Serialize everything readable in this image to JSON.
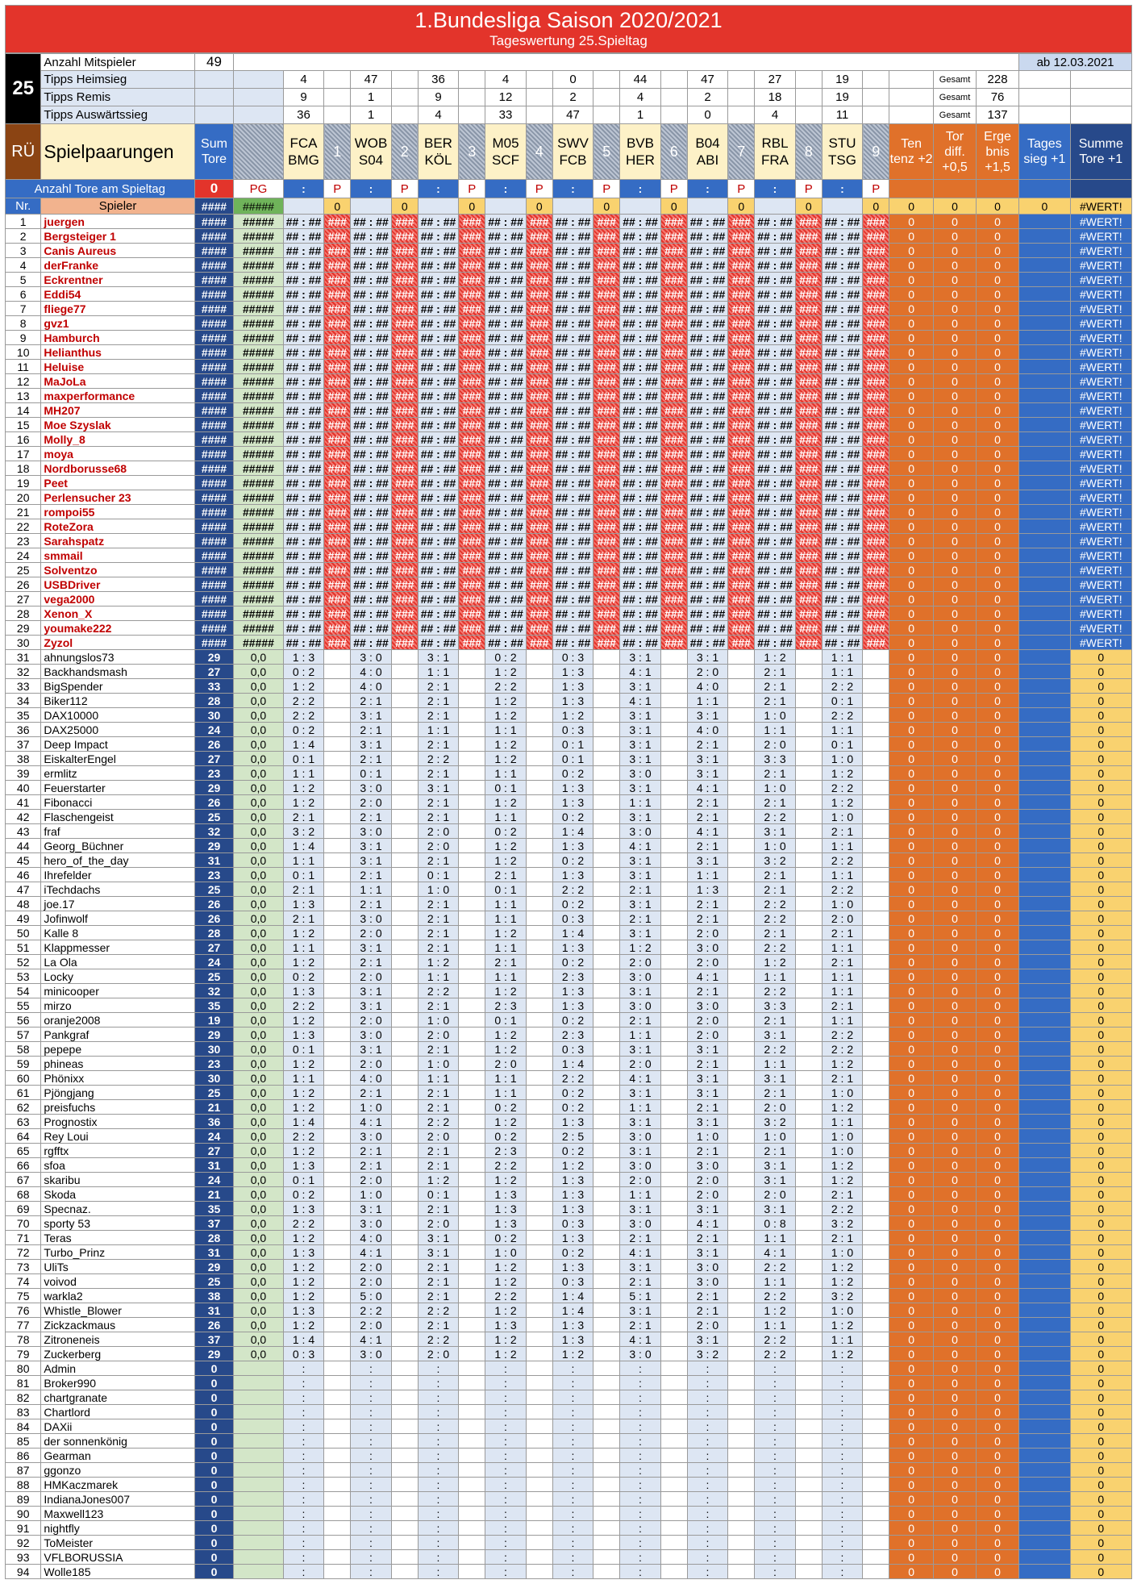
{
  "title": "1.Bundesliga Saison 2020/2021",
  "subtitle": "Tageswertung 25.Spieltag",
  "matchday": "25",
  "players_label": "Anzahl Mitspieler",
  "players_count": "49",
  "date": "ab 12.03.2021",
  "gesamt_label": "Gesamt",
  "tips": [
    {
      "label": "Tipps Heimsieg",
      "values": [
        "4",
        "47",
        "36",
        "4",
        "0",
        "44",
        "47",
        "27",
        "19"
      ],
      "total": "228"
    },
    {
      "label": "Tipps Remis",
      "values": [
        "9",
        "1",
        "9",
        "12",
        "2",
        "4",
        "2",
        "18",
        "19"
      ],
      "total": "76"
    },
    {
      "label": "Tipps Auswärtssieg",
      "values": [
        "36",
        "1",
        "4",
        "33",
        "47",
        "1",
        "0",
        "4",
        "11"
      ],
      "total": "137"
    }
  ],
  "header": {
    "ru": "RÜ",
    "pairings": "Spielpaarungen",
    "sum_tore": "Sum Tore",
    "matches": [
      {
        "home": "FCA",
        "away": "BMG",
        "n": "1"
      },
      {
        "home": "WOB",
        "away": "S04",
        "n": "2"
      },
      {
        "home": "BER",
        "away": "KÖL",
        "n": "3"
      },
      {
        "home": "M05",
        "away": "SCF",
        "n": "4"
      },
      {
        "home": "SWV",
        "away": "FCB",
        "n": "5"
      },
      {
        "home": "BVB",
        "away": "HER",
        "n": "6"
      },
      {
        "home": "B04",
        "away": "ABI",
        "n": "7"
      },
      {
        "home": "RBL",
        "away": "FRA",
        "n": "8"
      },
      {
        "home": "STU",
        "away": "TSG",
        "n": "9"
      }
    ],
    "tendenz": "Ten tenz +2",
    "tordiff": "Tor diff. +0,5",
    "ergebnis": "Erge bnis +1,5",
    "tagessieg": "Tages sieg +1",
    "summe": "Summe Tore +1"
  },
  "goals_row": {
    "label": "Anzahl Tore am Spieltag",
    "value": "0",
    "pg": "PG",
    "colon": ":",
    "p": "P"
  },
  "sub_header": {
    "nr": "Nr.",
    "spieler": "Spieler",
    "sum": "####",
    "pg": "#####",
    "zero": "0",
    "wert": "#WERT!"
  },
  "err": {
    "sum": "####",
    "pg": "#####",
    "tip": "## : ##",
    "pts": "###",
    "zero": "0",
    "wert": "#WERT!"
  },
  "blank_tip": ":",
  "group_a": [
    "juergen",
    "Bergsteiger 1",
    "Canis Aureus",
    "derFranke",
    "Eckrentner",
    "Eddi54",
    "fliege77",
    "gvz1",
    "Hamburch",
    "Helianthus",
    "Heluise",
    "MaJoLa",
    "maxperformance",
    "MH207",
    "Moe Szyslak",
    "Molly_8",
    "moya",
    "Nordborusse68",
    "Peet",
    "Perlensucher 23",
    "rompoi55",
    "RoteZora",
    "Sarahspatz",
    "smmail",
    "Solventzo",
    "USBDriver",
    "vega2000",
    "Xenon_X",
    "youmake222",
    "Zyzol"
  ],
  "group_b": [
    {
      "n": "ahnungslos73",
      "s": "29",
      "t": [
        "1 : 3",
        "3 : 0",
        "3 : 1",
        "0 : 2",
        "0 : 3",
        "3 : 1",
        "3 : 1",
        "1 : 2",
        "1 : 1"
      ]
    },
    {
      "n": "Backhandsmash",
      "s": "27",
      "t": [
        "0 : 2",
        "4 : 0",
        "1 : 1",
        "1 : 2",
        "1 : 3",
        "4 : 1",
        "2 : 0",
        "2 : 1",
        "1 : 1"
      ]
    },
    {
      "n": "BigSpender",
      "s": "33",
      "t": [
        "1 : 2",
        "4 : 0",
        "2 : 1",
        "2 : 2",
        "1 : 3",
        "3 : 1",
        "4 : 0",
        "2 : 1",
        "2 : 2"
      ]
    },
    {
      "n": "Biker112",
      "s": "28",
      "t": [
        "2 : 2",
        "2 : 1",
        "2 : 1",
        "1 : 2",
        "1 : 3",
        "4 : 1",
        "1 : 1",
        "2 : 1",
        "0 : 1"
      ]
    },
    {
      "n": "DAX10000",
      "s": "30",
      "t": [
        "2 : 2",
        "3 : 1",
        "2 : 1",
        "1 : 2",
        "1 : 2",
        "3 : 1",
        "3 : 1",
        "1 : 0",
        "2 : 2"
      ]
    },
    {
      "n": "DAX25000",
      "s": "24",
      "t": [
        "0 : 2",
        "2 : 1",
        "1 : 1",
        "1 : 1",
        "0 : 3",
        "3 : 1",
        "4 : 0",
        "1 : 1",
        "1 : 1"
      ]
    },
    {
      "n": "Deep Impact",
      "s": "26",
      "t": [
        "1 : 4",
        "3 : 1",
        "2 : 1",
        "1 : 2",
        "0 : 1",
        "3 : 1",
        "2 : 1",
        "2 : 0",
        "0 : 1"
      ]
    },
    {
      "n": "EiskalterEngel",
      "s": "27",
      "t": [
        "0 : 1",
        "2 : 1",
        "2 : 2",
        "1 : 2",
        "0 : 1",
        "3 : 1",
        "3 : 1",
        "3 : 3",
        "1 : 0"
      ]
    },
    {
      "n": "ermlitz",
      "s": "23",
      "t": [
        "1 : 1",
        "0 : 1",
        "2 : 1",
        "1 : 1",
        "0 : 2",
        "3 : 0",
        "3 : 1",
        "2 : 1",
        "1 : 2"
      ]
    },
    {
      "n": "Feuerstarter",
      "s": "29",
      "t": [
        "1 : 2",
        "3 : 0",
        "3 : 1",
        "0 : 1",
        "1 : 3",
        "3 : 1",
        "4 : 1",
        "1 : 0",
        "2 : 2"
      ]
    },
    {
      "n": "Fibonacci",
      "s": "26",
      "t": [
        "1 : 2",
        "2 : 0",
        "2 : 1",
        "1 : 2",
        "1 : 3",
        "1 : 1",
        "2 : 1",
        "2 : 1",
        "1 : 2"
      ]
    },
    {
      "n": "Flaschengeist",
      "s": "25",
      "t": [
        "2 : 1",
        "2 : 1",
        "2 : 1",
        "1 : 1",
        "0 : 2",
        "3 : 1",
        "2 : 1",
        "2 : 2",
        "1 : 0"
      ]
    },
    {
      "n": "fraf",
      "s": "32",
      "t": [
        "3 : 2",
        "3 : 0",
        "2 : 0",
        "0 : 2",
        "1 : 4",
        "3 : 0",
        "4 : 1",
        "3 : 1",
        "2 : 1"
      ]
    },
    {
      "n": "Georg_Büchner",
      "s": "29",
      "t": [
        "1 : 4",
        "3 : 1",
        "2 : 0",
        "1 : 2",
        "1 : 3",
        "4 : 1",
        "2 : 1",
        "1 : 0",
        "1 : 1"
      ]
    },
    {
      "n": "hero_of_the_day",
      "s": "31",
      "t": [
        "1 : 1",
        "3 : 1",
        "2 : 1",
        "1 : 2",
        "0 : 2",
        "3 : 1",
        "3 : 1",
        "3 : 2",
        "2 : 2"
      ]
    },
    {
      "n": "Ihrefelder",
      "s": "23",
      "t": [
        "0 : 1",
        "2 : 1",
        "0 : 1",
        "2 : 1",
        "1 : 3",
        "3 : 1",
        "1 : 1",
        "2 : 1",
        "1 : 1"
      ]
    },
    {
      "n": "iTechdachs",
      "s": "25",
      "t": [
        "2 : 1",
        "1 : 1",
        "1 : 0",
        "0 : 1",
        "2 : 2",
        "2 : 1",
        "1 : 3",
        "2 : 1",
        "2 : 2"
      ]
    },
    {
      "n": "joe.17",
      "s": "26",
      "t": [
        "1 : 3",
        "2 : 1",
        "2 : 1",
        "1 : 1",
        "0 : 2",
        "3 : 1",
        "2 : 1",
        "2 : 2",
        "1 : 0"
      ]
    },
    {
      "n": "Jofinwolf",
      "s": "26",
      "t": [
        "2 : 1",
        "3 : 0",
        "2 : 1",
        "1 : 1",
        "0 : 3",
        "2 : 1",
        "2 : 1",
        "2 : 2",
        "2 : 0"
      ]
    },
    {
      "n": "Kalle 8",
      "s": "28",
      "t": [
        "1 : 2",
        "2 : 0",
        "2 : 1",
        "1 : 2",
        "1 : 4",
        "3 : 1",
        "2 : 0",
        "2 : 1",
        "2 : 1"
      ]
    },
    {
      "n": "Klappmesser",
      "s": "27",
      "t": [
        "1 : 1",
        "3 : 1",
        "2 : 1",
        "1 : 1",
        "1 : 3",
        "1 : 2",
        "3 : 0",
        "2 : 2",
        "1 : 1"
      ]
    },
    {
      "n": "La Ola",
      "s": "24",
      "t": [
        "1 : 2",
        "2 : 1",
        "1 : 2",
        "2 : 1",
        "0 : 2",
        "2 : 0",
        "2 : 0",
        "1 : 2",
        "2 : 1"
      ]
    },
    {
      "n": "Locky",
      "s": "25",
      "t": [
        "0 : 2",
        "2 : 0",
        "1 : 1",
        "1 : 1",
        "2 : 3",
        "3 : 0",
        "4 : 1",
        "1 : 1",
        "1 : 1"
      ]
    },
    {
      "n": "minicooper",
      "s": "32",
      "t": [
        "1 : 3",
        "3 : 1",
        "2 : 2",
        "1 : 2",
        "1 : 3",
        "3 : 1",
        "2 : 1",
        "2 : 2",
        "1 : 1"
      ]
    },
    {
      "n": "mirzo",
      "s": "35",
      "t": [
        "2 : 2",
        "3 : 1",
        "2 : 1",
        "2 : 3",
        "1 : 3",
        "3 : 0",
        "3 : 0",
        "3 : 3",
        "2 : 1"
      ]
    },
    {
      "n": "oranje2008",
      "s": "19",
      "t": [
        "1 : 2",
        "2 : 0",
        "1 : 0",
        "0 : 1",
        "0 : 2",
        "2 : 1",
        "2 : 0",
        "2 : 1",
        "1 : 1"
      ]
    },
    {
      "n": "Pankgraf",
      "s": "29",
      "t": [
        "1 : 3",
        "3 : 0",
        "2 : 0",
        "1 : 2",
        "2 : 3",
        "1 : 1",
        "2 : 0",
        "3 : 1",
        "2 : 2"
      ]
    },
    {
      "n": "pepepe",
      "s": "30",
      "t": [
        "0 : 1",
        "3 : 1",
        "2 : 1",
        "1 : 2",
        "0 : 3",
        "3 : 1",
        "3 : 1",
        "2 : 2",
        "2 : 2"
      ]
    },
    {
      "n": "phineas",
      "s": "23",
      "t": [
        "1 : 2",
        "2 : 0",
        "1 : 0",
        "2 : 0",
        "1 : 4",
        "2 : 0",
        "2 : 1",
        "1 : 1",
        "1 : 2"
      ]
    },
    {
      "n": "Phönixx",
      "s": "30",
      "t": [
        "1 : 1",
        "4 : 0",
        "1 : 1",
        "1 : 1",
        "2 : 2",
        "4 : 1",
        "3 : 1",
        "3 : 1",
        "2 : 1"
      ]
    },
    {
      "n": "Pjöngjang",
      "s": "25",
      "t": [
        "1 : 2",
        "2 : 1",
        "2 : 1",
        "1 : 1",
        "0 : 2",
        "3 : 1",
        "3 : 1",
        "2 : 1",
        "1 : 0"
      ]
    },
    {
      "n": "preisfuchs",
      "s": "21",
      "t": [
        "1 : 2",
        "1 : 0",
        "2 : 1",
        "0 : 2",
        "0 : 2",
        "1 : 1",
        "2 : 1",
        "2 : 0",
        "1 : 2"
      ]
    },
    {
      "n": "Prognostix",
      "s": "36",
      "t": [
        "1 : 4",
        "4 : 1",
        "2 : 2",
        "1 : 2",
        "1 : 3",
        "3 : 1",
        "3 : 1",
        "3 : 2",
        "1 : 1"
      ]
    },
    {
      "n": "Rey Loui",
      "s": "24",
      "t": [
        "2 : 2",
        "3 : 0",
        "2 : 0",
        "0 : 2",
        "2 : 5",
        "3 : 0",
        "1 : 0",
        "1 : 0",
        "1 : 0"
      ]
    },
    {
      "n": "rgfftx",
      "s": "27",
      "t": [
        "1 : 2",
        "2 : 1",
        "2 : 1",
        "2 : 3",
        "0 : 2",
        "3 : 1",
        "2 : 1",
        "2 : 1",
        "1 : 0"
      ]
    },
    {
      "n": "sfoa",
      "s": "31",
      "t": [
        "1 : 3",
        "2 : 1",
        "2 : 1",
        "2 : 2",
        "1 : 2",
        "3 : 0",
        "3 : 0",
        "3 : 1",
        "1 : 2"
      ]
    },
    {
      "n": "skaribu",
      "s": "24",
      "t": [
        "0 : 1",
        "2 : 0",
        "1 : 2",
        "1 : 2",
        "1 : 3",
        "2 : 0",
        "2 : 0",
        "3 : 1",
        "1 : 2"
      ]
    },
    {
      "n": "Skoda",
      "s": "21",
      "t": [
        "0 : 2",
        "1 : 0",
        "0 : 1",
        "1 : 3",
        "1 : 3",
        "1 : 1",
        "2 : 0",
        "2 : 0",
        "2 : 1"
      ]
    },
    {
      "n": "Specnaz.",
      "s": "35",
      "t": [
        "1 : 3",
        "3 : 1",
        "2 : 1",
        "1 : 3",
        "1 : 3",
        "3 : 1",
        "3 : 1",
        "3 : 1",
        "2 : 2"
      ]
    },
    {
      "n": "sporty 53",
      "s": "37",
      "t": [
        "2 : 2",
        "3 : 0",
        "2 : 0",
        "1 : 3",
        "0 : 3",
        "3 : 0",
        "4 : 1",
        "0 : 8",
        "3 : 2"
      ]
    },
    {
      "n": "Teras",
      "s": "28",
      "t": [
        "1 : 2",
        "4 : 0",
        "3 : 1",
        "0 : 2",
        "1 : 3",
        "2 : 1",
        "2 : 1",
        "1 : 1",
        "2 : 1"
      ]
    },
    {
      "n": "Turbo_Prinz",
      "s": "31",
      "t": [
        "1 : 3",
        "4 : 1",
        "3 : 1",
        "1 : 0",
        "0 : 2",
        "4 : 1",
        "3 : 1",
        "4 : 1",
        "1 : 0"
      ]
    },
    {
      "n": "UliTs",
      "s": "29",
      "t": [
        "1 : 2",
        "2 : 0",
        "2 : 1",
        "1 : 2",
        "1 : 3",
        "3 : 1",
        "3 : 0",
        "2 : 2",
        "1 : 2"
      ]
    },
    {
      "n": "voivod",
      "s": "25",
      "t": [
        "1 : 2",
        "2 : 0",
        "2 : 1",
        "1 : 2",
        "0 : 3",
        "2 : 1",
        "3 : 0",
        "1 : 1",
        "1 : 2"
      ]
    },
    {
      "n": "warkla2",
      "s": "38",
      "t": [
        "1 : 2",
        "5 : 0",
        "2 : 1",
        "2 : 2",
        "1 : 4",
        "5 : 1",
        "2 : 1",
        "2 : 2",
        "3 : 2"
      ]
    },
    {
      "n": "Whistle_Blower",
      "s": "31",
      "t": [
        "1 : 3",
        "2 : 2",
        "2 : 2",
        "1 : 2",
        "1 : 4",
        "3 : 1",
        "2 : 1",
        "1 : 2",
        "1 : 0"
      ]
    },
    {
      "n": "Zickzackmaus",
      "s": "26",
      "t": [
        "1 : 2",
        "2 : 0",
        "2 : 1",
        "1 : 3",
        "1 : 3",
        "2 : 1",
        "2 : 0",
        "1 : 1",
        "1 : 2"
      ]
    },
    {
      "n": "Zitroneneis",
      "s": "37",
      "t": [
        "1 : 4",
        "4 : 1",
        "2 : 2",
        "1 : 2",
        "1 : 3",
        "4 : 1",
        "3 : 1",
        "2 : 2",
        "1 : 1"
      ]
    },
    {
      "n": "Zuckerberg",
      "s": "29",
      "t": [
        "0 : 3",
        "3 : 0",
        "2 : 0",
        "1 : 2",
        "1 : 2",
        "3 : 0",
        "3 : 2",
        "2 : 2",
        "1 : 2"
      ]
    }
  ],
  "b_pg": "0,0",
  "group_c": [
    "Admin",
    "Broker990",
    "chartgranate",
    "Chartlord",
    "DAXii",
    "der sonnenkönig",
    "Gearman",
    "ggonzo",
    "HMKaczmarek",
    "IndianaJones007",
    "Maxwell123",
    "nightfly",
    "ToMeister",
    "VFLBORUSSIA",
    "Wolle185"
  ]
}
